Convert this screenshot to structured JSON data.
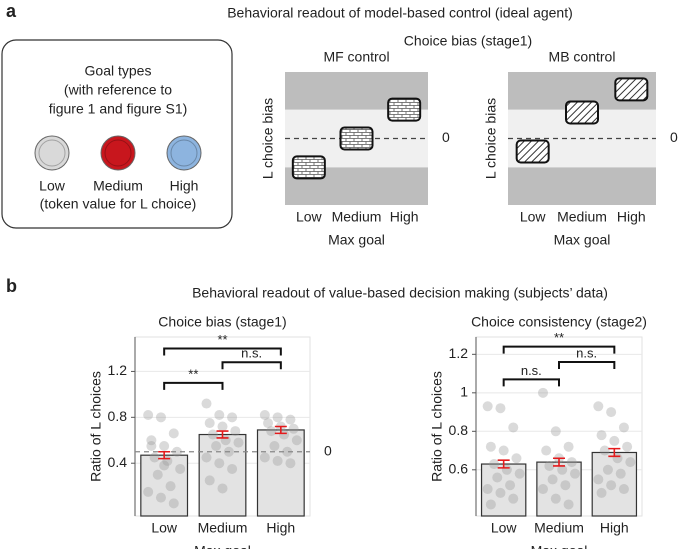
{
  "panel_labels": [
    "a",
    "b"
  ],
  "panel_a": {
    "title": "Behavioral readout of model-based control (ideal agent)",
    "subtitle": "Choice bias (stage1)",
    "goal_box": {
      "title_lines": [
        "Goal types",
        "(with reference to",
        "figure 1 and figure S1)"
      ],
      "tokens": [
        {
          "label": "Low",
          "color": "#d9d9d9"
        },
        {
          "label": "Medium",
          "color": "#c8161d"
        },
        {
          "label": "High",
          "color": "#8db4df"
        }
      ],
      "footer": "(token value for L choice)"
    }
  },
  "panel_b": {
    "title": "Behavioral readout of value-based decision making (subjects’ data)"
  },
  "chart_data": [
    {
      "type": "schematic",
      "title": "MF control",
      "ylabel": "L choice bias",
      "xlabel": "Max goal",
      "categories": [
        "Low",
        "Medium",
        "High"
      ],
      "values": [
        -1,
        0,
        1
      ],
      "ylim": [
        -2.3,
        2.3
      ],
      "band": [
        -1,
        1
      ],
      "band_color": "#f0f0f0",
      "background": "#bdbdbd",
      "refline": 0,
      "pattern": "brick"
    },
    {
      "type": "schematic",
      "title": "MB control",
      "ylabel": "L choice bias",
      "xlabel": "Max goal",
      "categories": [
        "Low",
        "Medium",
        "High"
      ],
      "values": [
        -0.45,
        0.9,
        1.7
      ],
      "ylim": [
        -2.3,
        2.3
      ],
      "band": [
        -1,
        1
      ],
      "band_color": "#f0f0f0",
      "background": "#bdbdbd",
      "refline": 0,
      "pattern": "hatch"
    },
    {
      "type": "bar",
      "title": "Choice bias (stage1)",
      "ylabel": "Ratio of L choices",
      "xlabel": "Max goal",
      "categories": [
        "Low",
        "Medium",
        "High"
      ],
      "values": [
        0.47,
        0.65,
        0.69
      ],
      "errors": [
        0.03,
        0.03,
        0.03
      ],
      "ylim": [
        -0.06,
        1.5
      ],
      "yticks": [
        0.4,
        0.8,
        1.2
      ],
      "grid": true,
      "color": "#e3e3e3",
      "error_color": "#e41a1c",
      "refline": {
        "value": 0.5,
        "label": "0"
      },
      "points": [
        [
          0.82,
          0.8,
          0.66,
          0.6,
          0.55,
          0.5,
          0.45,
          0.42,
          0.35,
          0.3,
          0.2,
          0.15,
          0.1,
          0.05,
          0.55,
          0.38
        ],
        [
          0.92,
          0.82,
          0.8,
          0.75,
          0.72,
          0.68,
          0.65,
          0.6,
          0.58,
          0.55,
          0.5,
          0.45,
          0.4,
          0.35,
          0.25,
          0.18
        ],
        [
          0.82,
          0.8,
          0.78,
          0.75,
          0.72,
          0.7,
          0.68,
          0.65,
          0.6,
          0.55,
          0.5,
          0.45,
          0.42,
          0.4
        ]
      ],
      "brackets": [
        {
          "from": 0,
          "to": 2,
          "y": 1.4,
          "label": "**"
        },
        {
          "from": 1,
          "to": 2,
          "y": 1.28,
          "label": "n.s."
        },
        {
          "from": 0,
          "to": 1,
          "y": 1.1,
          "label": "**"
        }
      ]
    },
    {
      "type": "bar",
      "title": "Choice consistency (stage2)",
      "ylabel": "Ratio of L choices",
      "xlabel": "Max goal",
      "categories": [
        "Low",
        "Medium",
        "High"
      ],
      "values": [
        0.63,
        0.64,
        0.69
      ],
      "errors": [
        0.02,
        0.02,
        0.02
      ],
      "ylim": [
        0.36,
        1.29
      ],
      "yticks": [
        0.6,
        0.8,
        1,
        1.2
      ],
      "grid": true,
      "color": "#e3e3e3",
      "error_color": "#e41a1c",
      "points": [
        [
          0.93,
          0.92,
          0.82,
          0.72,
          0.7,
          0.66,
          0.63,
          0.6,
          0.58,
          0.56,
          0.52,
          0.5,
          0.48,
          0.45,
          0.42
        ],
        [
          1.0,
          0.8,
          0.72,
          0.7,
          0.66,
          0.64,
          0.62,
          0.6,
          0.58,
          0.55,
          0.52,
          0.5,
          0.45,
          0.42
        ],
        [
          0.93,
          0.9,
          0.82,
          0.78,
          0.75,
          0.72,
          0.7,
          0.66,
          0.64,
          0.6,
          0.58,
          0.55,
          0.52,
          0.5,
          0.48
        ]
      ],
      "brackets": [
        {
          "from": 0,
          "to": 2,
          "y": 1.24,
          "label": "**"
        },
        {
          "from": 1,
          "to": 2,
          "y": 1.16,
          "label": "n.s."
        },
        {
          "from": 0,
          "to": 1,
          "y": 1.07,
          "label": "n.s."
        }
      ]
    }
  ]
}
